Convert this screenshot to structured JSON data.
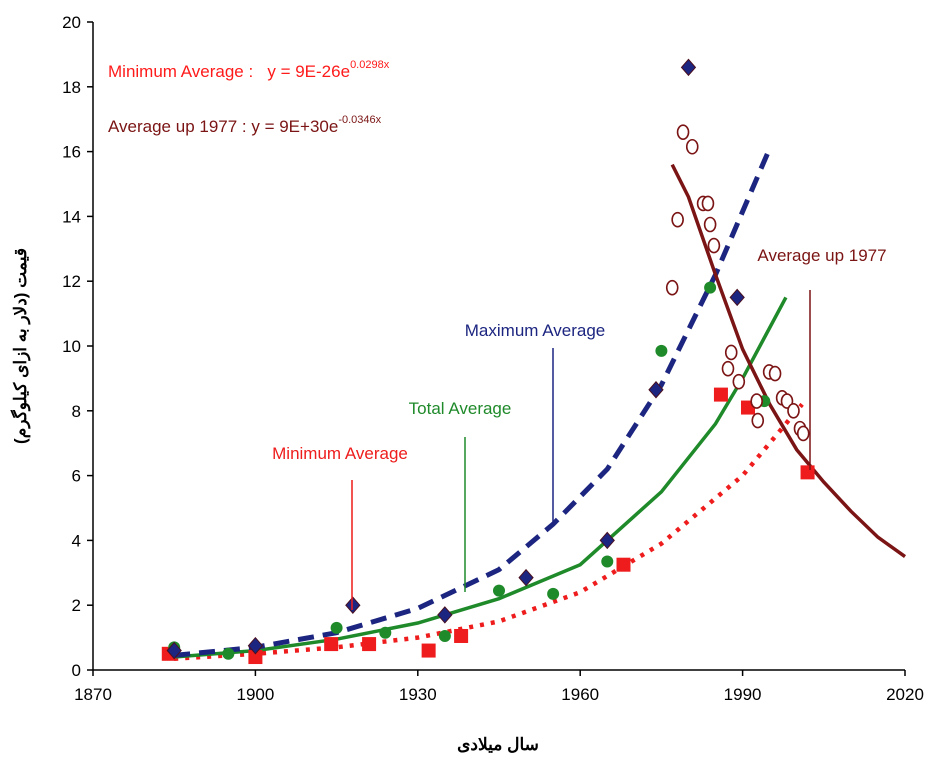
{
  "chart_data": {
    "type": "scatter",
    "x_label": "سال میلادی",
    "y_label": "قیمت (دلار به ازای کیلوگرم)",
    "xlim": [
      1870,
      2020
    ],
    "xticks": [
      1870,
      1900,
      1930,
      1960,
      1990,
      2020
    ],
    "ylim": [
      0,
      20
    ],
    "yticks": [
      0,
      2,
      4,
      6,
      8,
      10,
      12,
      14,
      16,
      18,
      20
    ],
    "grid": false,
    "equations": [
      {
        "text": "Minimum Average :   y = 9E-26e",
        "exponent": "0.0298x",
        "color": "#ff1a1a"
      },
      {
        "text": "Average up 1977 : y = 9E+30e",
        "exponent": "-0.0346x",
        "color": "#7b1414"
      }
    ],
    "series": [
      {
        "name": "Minimum Average",
        "color": "#ee1c1c",
        "marker": "square",
        "x": [
          1884,
          1900,
          1914,
          1921,
          1932,
          1938,
          1968,
          1986,
          1991,
          2002
        ],
        "values": [
          0.5,
          0.4,
          0.8,
          0.8,
          0.6,
          1.05,
          3.25,
          8.5,
          8.1,
          6.1
        ],
        "trend": {
          "x": [
            1885,
            1900,
            1915,
            1930,
            1945,
            1960,
            1975,
            1990,
            2001
          ],
          "values": [
            0.35,
            0.5,
            0.7,
            1.0,
            1.5,
            2.4,
            3.9,
            6.0,
            8.2
          ],
          "style": "dotted"
        }
      },
      {
        "name": "Total Average",
        "color": "#1f8a2a",
        "marker": "circle",
        "x": [
          1885,
          1895,
          1915,
          1924,
          1935,
          1945,
          1955,
          1965,
          1975,
          1984,
          1994
        ],
        "values": [
          0.7,
          0.5,
          1.3,
          1.15,
          1.05,
          2.45,
          2.35,
          3.35,
          9.85,
          11.8,
          8.3
        ],
        "trend": {
          "x": [
            1885,
            1900,
            1915,
            1930,
            1945,
            1960,
            1975,
            1985,
            1990,
            1998
          ],
          "values": [
            0.4,
            0.6,
            0.95,
            1.45,
            2.2,
            3.25,
            5.5,
            7.6,
            9.0,
            11.5
          ],
          "style": "solid"
        }
      },
      {
        "name": "Maximum Average",
        "color": "#1c2580",
        "marker": "diamond",
        "x": [
          1885,
          1900,
          1918,
          1935,
          1950,
          1965,
          1974,
          1980,
          1989
        ],
        "values": [
          0.6,
          0.75,
          2.0,
          1.7,
          2.85,
          4.0,
          8.65,
          18.6,
          11.5
        ],
        "trend": {
          "x": [
            1885,
            1900,
            1915,
            1930,
            1945,
            1955,
            1965,
            1975,
            1985,
            1995
          ],
          "values": [
            0.45,
            0.7,
            1.15,
            1.9,
            3.1,
            4.5,
            6.2,
            8.8,
            12.2,
            16.1
          ],
          "style": "dashed"
        }
      },
      {
        "name": "Average up 1977",
        "color": "#7b1414",
        "marker": "open-circle",
        "x": [
          1977,
          1978,
          1979,
          1980.7,
          1982.7,
          1983.6,
          1984,
          1984.7,
          1987.3,
          1987.9,
          1989.3,
          1992.6,
          1992.8,
          1994.9,
          1996,
          1997.3,
          1998.2,
          1999.4,
          2000.6,
          2001.2
        ],
        "values": [
          11.8,
          13.9,
          16.6,
          16.15,
          14.4,
          14.4,
          13.75,
          13.1,
          9.3,
          9.8,
          8.9,
          8.3,
          7.7,
          9.2,
          9.15,
          8.4,
          8.3,
          8.0,
          7.45,
          7.3
        ],
        "trend": {
          "x": [
            1977,
            1980,
            1985,
            1990,
            1995,
            2000,
            2005,
            2010,
            2015,
            2020
          ],
          "values": [
            15.6,
            14.6,
            12.2,
            9.9,
            8.2,
            6.8,
            5.8,
            4.9,
            4.1,
            3.5
          ],
          "style": "solid"
        }
      }
    ]
  }
}
